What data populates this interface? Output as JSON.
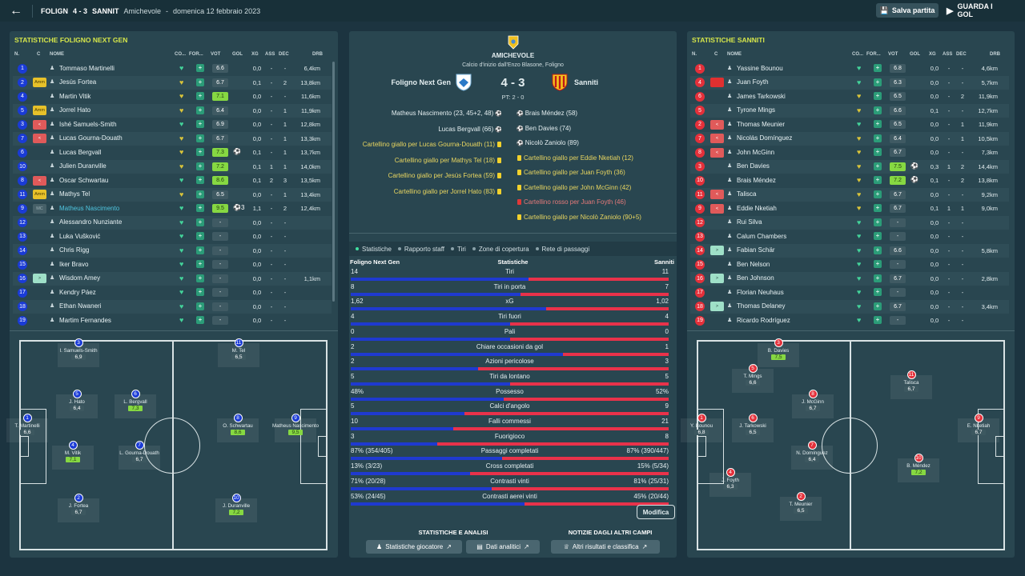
{
  "topbar": {
    "home_abbr": "FOLIGN",
    "score": "4 - 3",
    "away_abbr": "SANNIT",
    "match_type": "Amichevole",
    "dash": "-",
    "date": "domenica 12 febbraio 2023",
    "save_label": "Salva partita",
    "watch_label": "GUARDA I GOL"
  },
  "columns": {
    "n": "N.",
    "c": "C",
    "name": "NOME",
    "co": "CO...",
    "for": "FOR...",
    "vot": "VOT",
    "gol": "GOL",
    "xg": "XG",
    "ass": "ASS",
    "dec": "DEC",
    "drb": "DRB"
  },
  "left": {
    "title": "STATISTICHE FOLIGNO NEXT GEN",
    "players": [
      {
        "n": "1",
        "name": "Tommaso Martinelli",
        "vot": "6.6",
        "gol": "",
        "xg": "0,0",
        "ass": "-",
        "dec": "-",
        "drb": "6,4km",
        "badge": "",
        "heart": "g"
      },
      {
        "n": "2",
        "name": "Jesús Fortea",
        "vot": "6.7",
        "gol": "",
        "xg": "0,1",
        "ass": "-",
        "dec": "2",
        "drb": "13,8km",
        "badge": "Amm",
        "heart": "y"
      },
      {
        "n": "4",
        "name": "Martin Vitik",
        "vot": "7.1",
        "gol": "",
        "xg": "0,0",
        "ass": "-",
        "dec": "-",
        "drb": "11,6km",
        "badge": "",
        "heart": "y",
        "vg": true
      },
      {
        "n": "5",
        "name": "Jorrel Hato",
        "vot": "6.4",
        "gol": "",
        "xg": "0,0",
        "ass": "-",
        "dec": "1",
        "drb": "11,9km",
        "badge": "Amm",
        "heart": "y"
      },
      {
        "n": "3",
        "name": "Ishé Samuels-Smith",
        "vot": "6.9",
        "gol": "",
        "xg": "0,0",
        "ass": "-",
        "dec": "1",
        "drb": "12,8km",
        "badge": "<",
        "heart": "g"
      },
      {
        "n": "7",
        "name": "Lucas Gourna-Douath",
        "vot": "6.7",
        "gol": "",
        "xg": "0,0",
        "ass": "-",
        "dec": "1",
        "drb": "13,3km",
        "badge": "<",
        "heart": "y"
      },
      {
        "n": "6",
        "name": "Lucas Bergvall",
        "vot": "7.3",
        "gol": "⚽",
        "xg": "0,1",
        "ass": "-",
        "dec": "1",
        "drb": "13,7km",
        "badge": "",
        "heart": "y",
        "vg": true
      },
      {
        "n": "10",
        "name": "Julien Duranville",
        "vot": "7.2",
        "gol": "",
        "xg": "0,1",
        "ass": "1",
        "dec": "1",
        "drb": "14,0km",
        "badge": "",
        "heart": "y",
        "vg": true
      },
      {
        "n": "8",
        "name": "Oscar Schwartau",
        "vot": "8.6",
        "gol": "",
        "xg": "0,1",
        "ass": "2",
        "dec": "3",
        "drb": "13,5km",
        "badge": "<",
        "heart": "g",
        "vg": true
      },
      {
        "n": "11",
        "name": "Mathys Tel",
        "vot": "6.5",
        "gol": "",
        "xg": "0,0",
        "ass": "-",
        "dec": "1",
        "drb": "13,4km",
        "badge": "Amm",
        "heart": "y"
      },
      {
        "n": "9",
        "name": "Matheus Nascimento",
        "vot": "9.5",
        "gol": "⚽3",
        "xg": "1,1",
        "ass": "-",
        "dec": "2",
        "drb": "12,4km",
        "badge": "MC",
        "heart": "g",
        "vg": true,
        "hl": true
      },
      {
        "n": "12",
        "name": "Alessandro Nunziante",
        "vot": "-",
        "gol": "",
        "xg": "0,0",
        "ass": "-",
        "dec": "-",
        "drb": "",
        "badge": "",
        "heart": "g"
      },
      {
        "n": "13",
        "name": "Luka Vušković",
        "vot": "-",
        "gol": "",
        "xg": "0,0",
        "ass": "-",
        "dec": "-",
        "drb": "",
        "badge": "",
        "heart": "g"
      },
      {
        "n": "14",
        "name": "Chris Rigg",
        "vot": "-",
        "gol": "",
        "xg": "0,0",
        "ass": "-",
        "dec": "-",
        "drb": "",
        "badge": "",
        "heart": "g"
      },
      {
        "n": "15",
        "name": "Iker Bravo",
        "vot": "-",
        "gol": "",
        "xg": "0,0",
        "ass": "-",
        "dec": "-",
        "drb": "",
        "badge": "",
        "heart": "g"
      },
      {
        "n": "16",
        "name": "Wisdom Amey",
        "vot": "-",
        "gol": "",
        "xg": "0,0",
        "ass": "-",
        "dec": "-",
        "drb": "1,1km",
        "badge": ">",
        "heart": "g"
      },
      {
        "n": "17",
        "name": "Kendry Páez",
        "vot": "-",
        "gol": "",
        "xg": "0,0",
        "ass": "-",
        "dec": "-",
        "drb": "",
        "badge": "",
        "heart": "g"
      },
      {
        "n": "18",
        "name": "Ethan Nwaneri",
        "vot": "-",
        "gol": "",
        "xg": "0,0",
        "ass": "-",
        "dec": "-",
        "drb": "",
        "badge": "",
        "heart": "g"
      },
      {
        "n": "19",
        "name": "Martim Fernandes",
        "vot": "-",
        "gol": "",
        "xg": "0,0",
        "ass": "-",
        "dec": "-",
        "drb": "",
        "badge": "",
        "heart": "g"
      }
    ],
    "pitch": [
      {
        "n": "3",
        "name": "I. Samuels-Smith",
        "r": "6,9",
        "g": false
      },
      {
        "n": "11",
        "name": "M. Tel",
        "r": "6,5",
        "g": false
      },
      {
        "n": "5",
        "name": "J. Hato",
        "r": "6,4",
        "g": false
      },
      {
        "n": "6",
        "name": "L. Bergvall",
        "r": "7,3",
        "g": true
      },
      {
        "n": "1",
        "name": "T. Martinelli",
        "r": "6,6",
        "g": false
      },
      {
        "n": "8",
        "name": "O. Schwartau",
        "r": "8,6",
        "g": true
      },
      {
        "n": "9",
        "name": "Matheus Nascimento",
        "r": "9,5",
        "g": true
      },
      {
        "n": "4",
        "name": "M. Vitik",
        "r": "7,1",
        "g": true
      },
      {
        "n": "7",
        "name": "L. Gourna-Douath",
        "r": "6,7",
        "g": false
      },
      {
        "n": "2",
        "name": "J. Fortea",
        "r": "6,7",
        "g": false
      },
      {
        "n": "10",
        "name": "J. Duranville",
        "r": "7,2",
        "g": true
      }
    ]
  },
  "right": {
    "title": "STATISTICHE SANNITI",
    "players": [
      {
        "n": "1",
        "name": "Yassine Bounou",
        "vot": "6.8",
        "gol": "",
        "xg": "0,0",
        "ass": "-",
        "dec": "-",
        "drb": "4,6km",
        "badge": "",
        "heart": "g"
      },
      {
        "n": "4",
        "name": "Juan Foyth",
        "vot": "6.3",
        "gol": "",
        "xg": "0,0",
        "ass": "-",
        "dec": "-",
        "drb": "5,7km",
        "badge": "R",
        "heart": "g"
      },
      {
        "n": "6",
        "name": "James Tarkowski",
        "vot": "6.5",
        "gol": "",
        "xg": "0,0",
        "ass": "-",
        "dec": "2",
        "drb": "11,9km",
        "badge": "",
        "heart": "y"
      },
      {
        "n": "5",
        "name": "Tyrone Mings",
        "vot": "6.6",
        "gol": "",
        "xg": "0,1",
        "ass": "-",
        "dec": "-",
        "drb": "12,7km",
        "badge": "",
        "heart": "y"
      },
      {
        "n": "2",
        "name": "Thomas Meunier",
        "vot": "6.5",
        "gol": "",
        "xg": "0,0",
        "ass": "-",
        "dec": "1",
        "drb": "11,9km",
        "badge": "<",
        "heart": "g"
      },
      {
        "n": "7",
        "name": "Nicolás Domínguez",
        "vot": "6.4",
        "gol": "",
        "xg": "0,0",
        "ass": "-",
        "dec": "1",
        "drb": "10,5km",
        "badge": "<",
        "heart": "y"
      },
      {
        "n": "8",
        "name": "John McGinn",
        "vot": "6.7",
        "gol": "",
        "xg": "0,0",
        "ass": "-",
        "dec": "-",
        "drb": "7,3km",
        "badge": "<",
        "heart": "y"
      },
      {
        "n": "3",
        "name": "Ben Davies",
        "vot": "7.5",
        "gol": "⚽",
        "xg": "0,3",
        "ass": "1",
        "dec": "2",
        "drb": "14,4km",
        "badge": "",
        "heart": "y",
        "vg": true
      },
      {
        "n": "10",
        "name": "Brais Méndez",
        "vot": "7.2",
        "gol": "⚽",
        "xg": "0,1",
        "ass": "-",
        "dec": "2",
        "drb": "13,8km",
        "badge": "",
        "heart": "y",
        "vg": true
      },
      {
        "n": "11",
        "name": "Talisca",
        "vot": "6.7",
        "gol": "",
        "xg": "0,0",
        "ass": "-",
        "dec": "-",
        "drb": "9,2km",
        "badge": "<",
        "heart": "y"
      },
      {
        "n": "9",
        "name": "Eddie Nketiah",
        "vot": "6.7",
        "gol": "",
        "xg": "0,1",
        "ass": "1",
        "dec": "1",
        "drb": "9,0km",
        "badge": "<",
        "heart": "y"
      },
      {
        "n": "12",
        "name": "Rui Silva",
        "vot": "-",
        "gol": "",
        "xg": "0,0",
        "ass": "-",
        "dec": "-",
        "drb": "",
        "badge": "",
        "heart": "g"
      },
      {
        "n": "13",
        "name": "Calum Chambers",
        "vot": "-",
        "gol": "",
        "xg": "0,0",
        "ass": "-",
        "dec": "-",
        "drb": "",
        "badge": "",
        "heart": "g"
      },
      {
        "n": "14",
        "name": "Fabian Schär",
        "vot": "6.6",
        "gol": "",
        "xg": "0,0",
        "ass": "-",
        "dec": "-",
        "drb": "5,8km",
        "badge": ">",
        "heart": "g"
      },
      {
        "n": "15",
        "name": "Ben Nelson",
        "vot": "-",
        "gol": "",
        "xg": "0,0",
        "ass": "-",
        "dec": "-",
        "drb": "",
        "badge": "",
        "heart": "g"
      },
      {
        "n": "16",
        "name": "Ben Johnson",
        "vot": "6.7",
        "gol": "",
        "xg": "0,0",
        "ass": "-",
        "dec": "-",
        "drb": "2,8km",
        "badge": ">",
        "heart": "g"
      },
      {
        "n": "17",
        "name": "Florian Neuhaus",
        "vot": "-",
        "gol": "",
        "xg": "0,0",
        "ass": "-",
        "dec": "-",
        "drb": "",
        "badge": "",
        "heart": "g"
      },
      {
        "n": "18",
        "name": "Thomas Delaney",
        "vot": "6.7",
        "gol": "",
        "xg": "0,0",
        "ass": "-",
        "dec": "-",
        "drb": "3,4km",
        "badge": ">",
        "heart": "g"
      },
      {
        "n": "19",
        "name": "Ricardo Rodríguez",
        "vot": "-",
        "gol": "",
        "xg": "0,0",
        "ass": "-",
        "dec": "-",
        "drb": "",
        "badge": "",
        "heart": "g"
      }
    ],
    "pitch": [
      {
        "n": "3",
        "name": "B. Davies",
        "r": "7,5",
        "g": true
      },
      {
        "n": "5",
        "name": "T. Mings",
        "r": "6,6",
        "g": false
      },
      {
        "n": "11",
        "name": "Talisca",
        "r": "6,7",
        "g": false
      },
      {
        "n": "8",
        "name": "J. McGinn",
        "r": "6,7",
        "g": false
      },
      {
        "n": "1",
        "name": "Y. Bounou",
        "r": "6,8",
        "g": false
      },
      {
        "n": "6",
        "name": "J. Tarkowski",
        "r": "6,5",
        "g": false
      },
      {
        "n": "9",
        "name": "E. Nketiah",
        "r": "6,7",
        "g": false
      },
      {
        "n": "7",
        "name": "N. Domínguez",
        "r": "6,4",
        "g": false
      },
      {
        "n": "10",
        "name": "B. Méndez",
        "r": "7,2",
        "g": true
      },
      {
        "n": "4",
        "name": "J. Foyth",
        "r": "6,3",
        "g": false
      },
      {
        "n": "2",
        "name": "T. Meunier",
        "r": "6,5",
        "g": false
      }
    ]
  },
  "center": {
    "match_type": "AMICHEVOLE",
    "kickoff": "Calcio d'inizio dall'Enzo Blasone, Foligno",
    "home": "Foligno Next Gen",
    "away": "Sanniti",
    "score": "4 - 3",
    "pt": "PT: 2 - 0",
    "events_home": [
      {
        "t": "Matheus Nascimento (23, 45+2, 48)",
        "k": "goal"
      },
      {
        "t": "Lucas Bergvall (66)",
        "k": "goal"
      },
      {
        "t": "Cartellino giallo per Lucas Gourna-Douath (11)",
        "k": "y"
      },
      {
        "t": "Cartellino giallo per Mathys Tel (18)",
        "k": "y"
      },
      {
        "t": "Cartellino giallo per Jesús Fortea (59)",
        "k": "y"
      },
      {
        "t": "Cartellino giallo per Jorrel Hato (83)",
        "k": "y"
      }
    ],
    "events_away": [
      {
        "t": "Brais Méndez (58)",
        "k": "goal"
      },
      {
        "t": "Ben Davies (74)",
        "k": "goal"
      },
      {
        "t": "Nicolò Zaniolo (89)",
        "k": "goal"
      },
      {
        "t": "Cartellino giallo per Eddie Nketiah (12)",
        "k": "y"
      },
      {
        "t": "Cartellino giallo per Juan Foyth (36)",
        "k": "y"
      },
      {
        "t": "Cartellino giallo per John McGinn (42)",
        "k": "y"
      },
      {
        "t": "Cartellino rosso per Juan Foyth (46)",
        "k": "r"
      },
      {
        "t": "Cartellino giallo per Nicolò Zaniolo (90+5)",
        "k": "y"
      }
    ],
    "tabs": [
      "Statistiche",
      "Rapporto staff",
      "Tiri",
      "Zone di copertura",
      "Rete di passaggi"
    ],
    "stats_header": {
      "home": "Foligno Next Gen",
      "mid": "Statistiche",
      "away": "Sanniti"
    },
    "stats": [
      {
        "h": "14",
        "label": "Tiri",
        "a": "11",
        "hv": 14,
        "av": 11
      },
      {
        "h": "8",
        "label": "Tiri in porta",
        "a": "7",
        "hv": 8,
        "av": 7
      },
      {
        "h": "1,62",
        "label": "xG",
        "a": "1,02",
        "hv": 1.62,
        "av": 1.02
      },
      {
        "h": "4",
        "label": "Tiri fuori",
        "a": "4",
        "hv": 4,
        "av": 4
      },
      {
        "h": "0",
        "label": "Pali",
        "a": "0",
        "hv": 0,
        "av": 0
      },
      {
        "h": "2",
        "label": "Chiare occasioni da gol",
        "a": "1",
        "hv": 2,
        "av": 1
      },
      {
        "h": "2",
        "label": "Azioni pericolose",
        "a": "3",
        "hv": 2,
        "av": 3
      },
      {
        "h": "5",
        "label": "Tiri da lontano",
        "a": "5",
        "hv": 5,
        "av": 5
      },
      {
        "h": "48%",
        "label": "Possesso",
        "a": "52%",
        "hv": 48,
        "av": 52
      },
      {
        "h": "5",
        "label": "Calci d'angolo",
        "a": "9",
        "hv": 5,
        "av": 9
      },
      {
        "h": "10",
        "label": "Falli commessi",
        "a": "21",
        "hv": 10,
        "av": 21
      },
      {
        "h": "3",
        "label": "Fuorigioco",
        "a": "8",
        "hv": 3,
        "av": 8
      },
      {
        "h": "87% (354/405)",
        "label": "Passaggi completati",
        "a": "87% (390/447)",
        "hv": 354,
        "av": 390
      },
      {
        "h": "13% (3/23)",
        "label": "Cross completati",
        "a": "15% (5/34)",
        "hv": 3,
        "av": 5
      },
      {
        "h": "71% (20/28)",
        "label": "Contrasti vinti",
        "a": "81% (25/31)",
        "hv": 20,
        "av": 25
      },
      {
        "h": "53% (24/45)",
        "label": "Contrasti aerei vinti",
        "a": "45% (20/44)",
        "hv": 24,
        "av": 20
      }
    ],
    "modify_label": "Modifica",
    "foot_left_title": "STATISTICHE E ANALISI",
    "foot_right_title": "NOTIZIE DAGLI ALTRI CAMPI",
    "btn_player_stats": "Statistiche giocatore",
    "btn_analytics": "Dati analitici",
    "btn_other_results": "Altri risultati e classifica"
  },
  "colors": {
    "home": "#1a3bd6",
    "away": "#e4303a",
    "accent": "#d6e64a"
  }
}
